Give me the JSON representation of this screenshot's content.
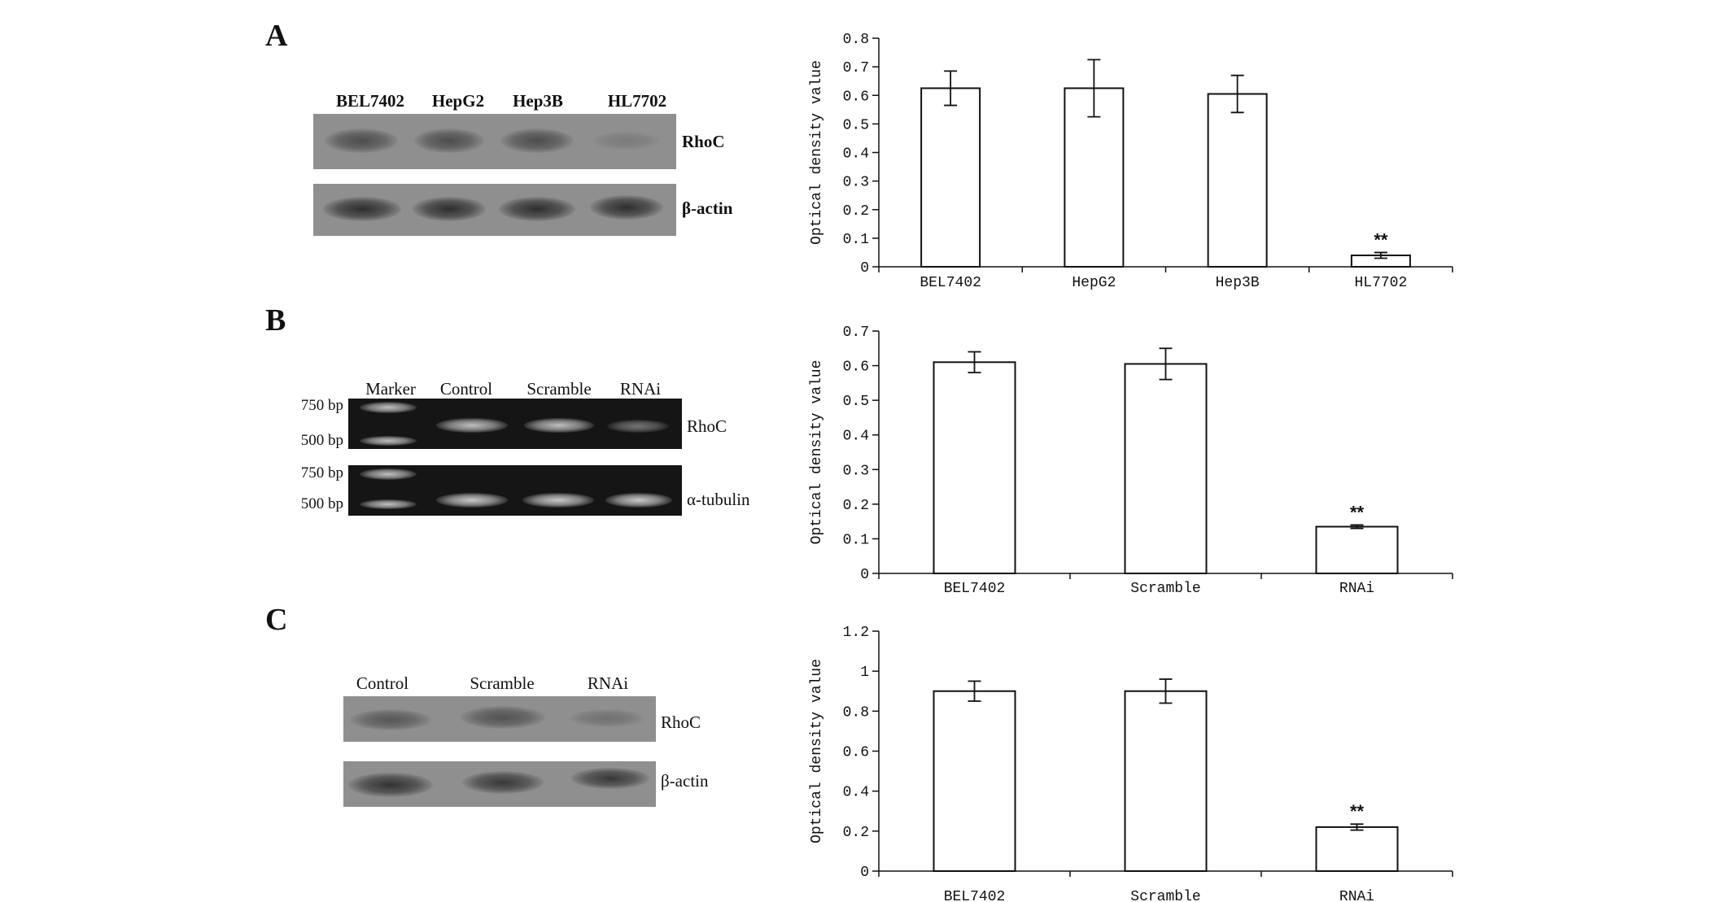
{
  "panels": [
    {
      "letter": "A",
      "blot": {
        "lanes": [
          "BEL7402",
          "HepG2",
          "Hep3B",
          "HL7702"
        ],
        "rows": [
          {
            "label": "RhoC",
            "band_intensity": [
              0.65,
              0.65,
              0.65,
              0.2
            ]
          },
          {
            "label": "β-actin",
            "band_intensity": [
              0.95,
              0.95,
              0.95,
              0.95
            ]
          }
        ]
      }
    },
    {
      "letter": "B",
      "blot": {
        "lanes": [
          "Marker",
          "Control",
          "Scramble",
          "RNAi"
        ],
        "size_markers": [
          "750 bp",
          "500 bp",
          "750 bp",
          "500 bp"
        ],
        "rows": [
          {
            "label": "RhoC",
            "band_intensity": [
              0.8,
              0.8,
              0.8,
              0.45
            ]
          },
          {
            "label": "α-tubulin",
            "band_intensity": [
              0.8,
              0.85,
              0.85,
              0.85
            ]
          }
        ]
      }
    },
    {
      "letter": "C",
      "blot": {
        "lanes": [
          "Control",
          "Scramble",
          "RNAi"
        ],
        "rows": [
          {
            "label": "RhoC",
            "band_intensity": [
              0.55,
              0.6,
              0.3
            ]
          },
          {
            "label": "β-actin",
            "band_intensity": [
              0.9,
              0.85,
              0.85
            ]
          }
        ]
      }
    }
  ],
  "chart_data": [
    {
      "type": "bar",
      "categories": [
        "BEL7402",
        "HepG2",
        "Hep3B",
        "HL7702"
      ],
      "values": [
        0.625,
        0.625,
        0.605,
        0.04
      ],
      "errors": [
        0.06,
        0.1,
        0.065,
        0.01
      ],
      "annotations": [
        "",
        "",
        "",
        "**"
      ],
      "ylabel": "Optical density value",
      "ylim": [
        0,
        0.8
      ],
      "yticks": [
        0,
        0.1,
        0.2,
        0.3,
        0.4,
        0.5,
        0.6,
        0.7,
        0.8
      ],
      "ytick_labels": [
        "0",
        "0.1",
        "0.2",
        "0.3",
        "0.4",
        "0.5",
        "0.6",
        "0.7",
        "0.8"
      ]
    },
    {
      "type": "bar",
      "categories": [
        "BEL7402",
        "Scramble",
        "RNAi"
      ],
      "values": [
        0.61,
        0.605,
        0.135
      ],
      "errors": [
        0.03,
        0.045,
        0.005
      ],
      "annotations": [
        "",
        "",
        "**"
      ],
      "ylabel": "Optical density value",
      "ylim": [
        0,
        0.7
      ],
      "yticks": [
        0,
        0.1,
        0.2,
        0.3,
        0.4,
        0.5,
        0.6,
        0.7
      ],
      "ytick_labels": [
        "0",
        "0.1",
        "0.2",
        "0.3",
        "0.4",
        "0.5",
        "0.6",
        "0.7"
      ]
    },
    {
      "type": "bar",
      "categories": [
        "BEL7402",
        "Scramble",
        "RNAi"
      ],
      "values": [
        0.9,
        0.9,
        0.22
      ],
      "errors": [
        0.05,
        0.06,
        0.015
      ],
      "annotations": [
        "",
        "",
        "**"
      ],
      "ylabel": "Optical density value",
      "ylim": [
        0,
        1.2
      ],
      "yticks": [
        0,
        0.2,
        0.4,
        0.6,
        0.8,
        1,
        1.2
      ],
      "ytick_labels": [
        "0",
        "0.2",
        "0.4",
        "0.6",
        "0.8",
        "1",
        "1.2"
      ]
    }
  ]
}
